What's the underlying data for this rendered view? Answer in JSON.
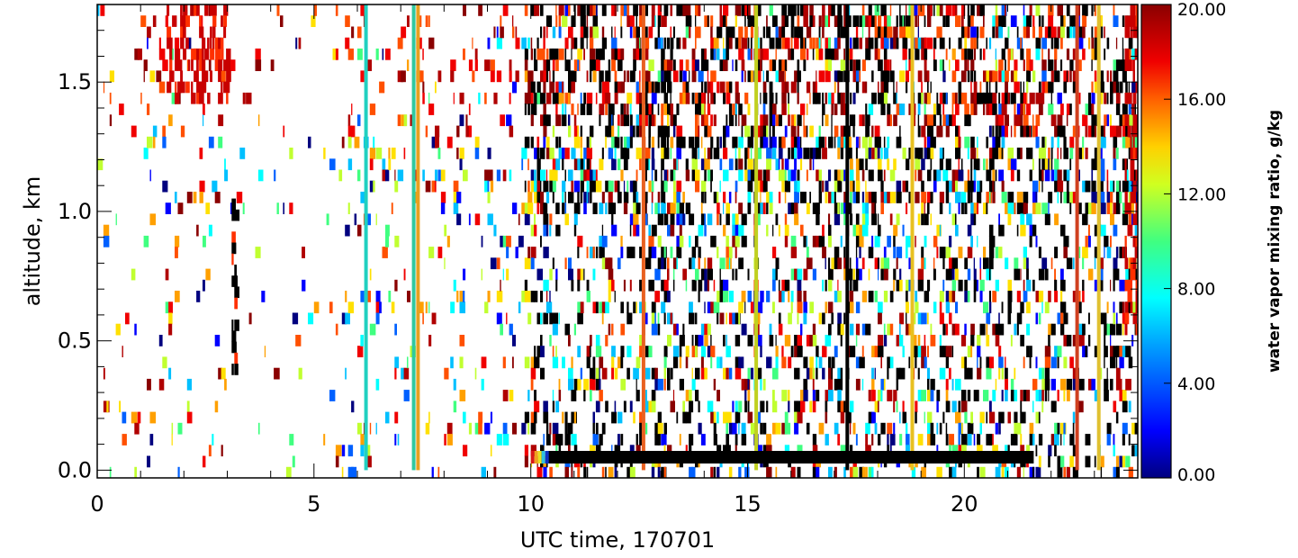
{
  "chart_data": {
    "type": "heatmap",
    "title": "",
    "xlabel": "UTC time, 170701",
    "ylabel": "altitude, km",
    "xlim": [
      0,
      24
    ],
    "ylim": [
      -0.03,
      1.8
    ],
    "x_major_ticks": [
      0,
      5,
      10,
      15,
      20
    ],
    "x_tick_labels": [
      "0",
      "5",
      "10",
      "15",
      "20"
    ],
    "y_major_ticks": [
      0.0,
      0.5,
      1.0,
      1.5
    ],
    "y_tick_labels": [
      "0.0",
      "0.5",
      "1.0",
      "1.5"
    ],
    "colorbar": {
      "label": "water vapor mixing ratio, g/kg",
      "range": [
        0,
        20
      ],
      "ticks": [
        0,
        4,
        8,
        12,
        16,
        20
      ],
      "tick_labels": [
        "0.00",
        "4.00",
        "8.00",
        "12.00",
        "16.00",
        "20.00"
      ],
      "colormap": "rainbow (dark blue → cyan → green → yellow → red → dark red)"
    },
    "no_data_color": "#ffffff",
    "saturated_color": "#000000",
    "continuous_bands": [
      {
        "x": 6.2,
        "y_range": [
          0.0,
          1.8
        ],
        "color": "#20d0c0"
      },
      {
        "x": 7.3,
        "y_range": [
          0.0,
          1.8
        ],
        "color": "#30c8a0"
      },
      {
        "x": 7.4,
        "y_range": [
          0.0,
          1.8
        ],
        "color": "#e8a020"
      },
      {
        "x": 12.6,
        "y_range": [
          0.0,
          1.8
        ],
        "color": "#e86020"
      },
      {
        "x": 15.2,
        "y_range": [
          0.0,
          1.8
        ],
        "color": "#c0d020"
      },
      {
        "x": 17.3,
        "y_range": [
          0.0,
          1.8
        ],
        "color": "#000000"
      },
      {
        "x": 18.8,
        "y_range": [
          0.0,
          1.8
        ],
        "color": "#e8c020"
      },
      {
        "x": 22.6,
        "y_range": [
          0.0,
          1.8
        ],
        "color": "#d04020"
      },
      {
        "x": 23.1,
        "y_range": [
          0.0,
          1.8
        ],
        "color": "#e0c030"
      }
    ],
    "surface_band": {
      "x_range": [
        10.0,
        21.6
      ],
      "y": 0.05,
      "colors_start": [
        "#d81818",
        "#f0a020",
        "#e8e020",
        "#30c0e0",
        "#1030c0"
      ],
      "color": "#000000"
    },
    "features": [
      {
        "x_range": [
          1.6,
          3.0
        ],
        "y_range": [
          1.45,
          1.8
        ],
        "value": 19
      },
      {
        "x_range": [
          23.7,
          24.0
        ],
        "y_range": [
          0.55,
          1.8
        ],
        "value": 19
      },
      {
        "x_range": [
          3.1,
          3.2
        ],
        "y_range": [
          0.25,
          1.05
        ],
        "value": 0,
        "note": "black"
      }
    ]
  }
}
